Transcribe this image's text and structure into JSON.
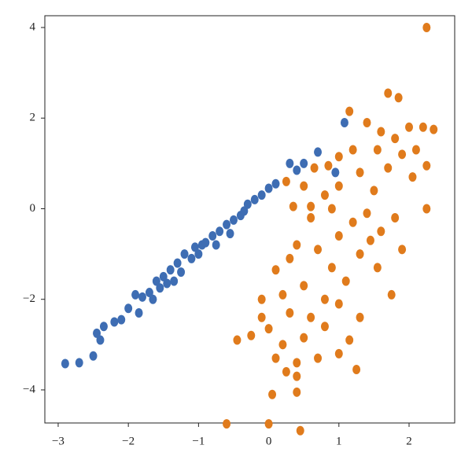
{
  "chart_data": {
    "type": "scatter",
    "xlim": [
      -3.19,
      2.65
    ],
    "ylim": [
      -4.73,
      4.26
    ],
    "xticks": [
      {
        "value": -3,
        "label": "−3"
      },
      {
        "value": -2,
        "label": "−2"
      },
      {
        "value": -1,
        "label": "−1"
      },
      0,
      1,
      2
    ],
    "yticks": [
      {
        "value": -4,
        "label": "−4"
      },
      {
        "value": -2,
        "label": "−2"
      },
      0,
      2,
      4
    ],
    "series": [
      {
        "color": "#3e6db3",
        "x": [
          -2.9,
          -2.7,
          -2.5,
          -2.45,
          -2.4,
          -2.35,
          -2.2,
          -2.1,
          -2.0,
          -1.9,
          -1.85,
          -1.8,
          -1.7,
          -1.65,
          -1.6,
          -1.55,
          -1.5,
          -1.45,
          -1.4,
          -1.35,
          -1.3,
          -1.25,
          -1.2,
          -1.1,
          -1.05,
          -1.0,
          -0.95,
          -0.9,
          -0.8,
          -0.75,
          -0.7,
          -0.6,
          -0.55,
          -0.5,
          -0.4,
          -0.35,
          -0.3,
          -0.2,
          -0.1,
          0.0,
          0.1,
          0.3,
          0.4,
          0.5,
          0.7,
          1.08,
          0.95
        ],
        "y": [
          -3.42,
          -3.4,
          -3.25,
          -2.75,
          -2.9,
          -2.6,
          -2.5,
          -2.45,
          -2.2,
          -1.9,
          -2.3,
          -1.95,
          -1.85,
          -2.0,
          -1.6,
          -1.75,
          -1.5,
          -1.65,
          -1.35,
          -1.6,
          -1.2,
          -1.4,
          -1.0,
          -1.1,
          -0.85,
          -1.0,
          -0.8,
          -0.75,
          -0.6,
          -0.8,
          -0.5,
          -0.35,
          -0.55,
          -0.25,
          -0.15,
          -0.05,
          0.1,
          0.2,
          0.3,
          0.45,
          0.55,
          1.0,
          0.85,
          1.0,
          1.25,
          1.9,
          0.8
        ]
      },
      {
        "color": "#e07b1c",
        "x": [
          2.25,
          1.15,
          1.4,
          1.7,
          1.85,
          1.8,
          2.0,
          1.6,
          1.55,
          1.9,
          2.2,
          2.35,
          2.1,
          2.25,
          2.05,
          2.25,
          1.2,
          1.0,
          0.85,
          0.65,
          0.25,
          0.5,
          0.35,
          0.6,
          0.8,
          1.0,
          1.3,
          1.5,
          1.7,
          1.8,
          1.6,
          1.4,
          1.2,
          1.0,
          0.7,
          0.4,
          0.3,
          0.9,
          1.3,
          1.1,
          1.55,
          1.9,
          1.75,
          0.1,
          0.2,
          0.5,
          0.8,
          1.0,
          1.3,
          0.6,
          0.3,
          -0.1,
          -0.45,
          -0.25,
          0.0,
          0.2,
          0.5,
          0.8,
          1.0,
          0.7,
          0.4,
          0.1,
          1.15,
          1.25,
          0.25,
          0.05,
          0.4,
          0.4,
          -0.6,
          0.0,
          0.45,
          -0.1,
          0.9,
          1.45,
          0.6
        ],
        "y": [
          4.0,
          2.15,
          1.9,
          2.55,
          2.45,
          1.55,
          1.8,
          1.7,
          1.3,
          1.2,
          1.8,
          1.75,
          1.3,
          0.95,
          0.7,
          0.0,
          1.3,
          1.15,
          0.95,
          0.9,
          0.6,
          0.5,
          0.05,
          -0.2,
          0.3,
          0.5,
          0.8,
          0.4,
          0.9,
          -0.2,
          -0.5,
          -0.1,
          -0.3,
          -0.6,
          -0.9,
          -0.8,
          -1.1,
          -1.3,
          -1.0,
          -1.6,
          -1.3,
          -0.9,
          -1.9,
          -1.35,
          -1.9,
          -1.7,
          -2.0,
          -2.1,
          -2.4,
          -2.4,
          -2.3,
          -2.4,
          -2.9,
          -2.8,
          -2.65,
          -3.0,
          -2.85,
          -2.6,
          -3.2,
          -3.3,
          -3.4,
          -3.3,
          -2.9,
          -3.55,
          -3.6,
          -4.1,
          -4.05,
          -3.7,
          -4.75,
          -4.75,
          -4.9,
          -2.0,
          0.0,
          -0.7,
          0.05
        ]
      }
    ]
  }
}
